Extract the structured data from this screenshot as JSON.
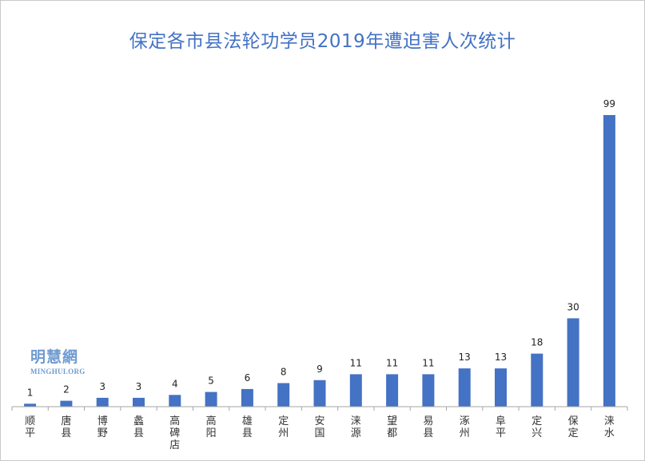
{
  "chart_data": {
    "type": "bar",
    "title": "保定各市县法轮功学员2019年遭迫害人次统计",
    "categories": [
      "顺平",
      "唐县",
      "博野",
      "蠡县",
      "高碑店",
      "高阳",
      "雄县",
      "定州",
      "安国",
      "涞源",
      "望都",
      "易县",
      "涿州",
      "阜平",
      "定兴",
      "保定",
      "涞水"
    ],
    "values": [
      1,
      2,
      3,
      3,
      4,
      5,
      6,
      8,
      9,
      11,
      11,
      11,
      13,
      13,
      18,
      30,
      99
    ],
    "xlabel": "",
    "ylabel": "",
    "ylim": [
      0,
      99
    ],
    "grid": false,
    "legend": "none",
    "data_labels": true,
    "bar_color": "#4472c4",
    "title_color": "#4472c4"
  },
  "watermark": {
    "name_cn": "明慧網",
    "name_en": "MINGHUI.ORG"
  }
}
